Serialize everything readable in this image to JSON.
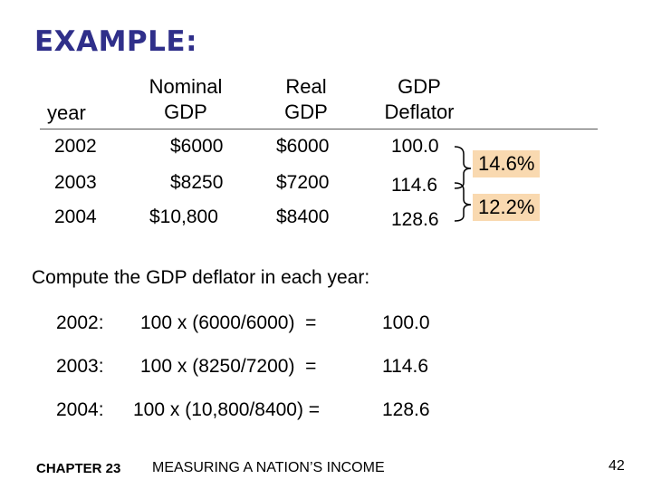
{
  "title": "EXAMPLE:",
  "table": {
    "headers": {
      "year": "year",
      "nominal": "Nominal\nGDP",
      "real": "Real\nGDP",
      "deflator": "GDP\nDeflator"
    },
    "rows": [
      {
        "year": "2002",
        "nominal": "$6000",
        "real": "$6000",
        "deflator": "100.0"
      },
      {
        "year": "2003",
        "nominal": "$8250",
        "real": "$7200",
        "deflator": "114.6"
      },
      {
        "year": "2004",
        "nominal": "$10,800",
        "real": "$8400",
        "deflator": "128.6"
      }
    ]
  },
  "growth": [
    "14.6%",
    "12.2%"
  ],
  "subtitle": "Compute the GDP deflator in each year:",
  "calculations": [
    {
      "year": "2002:",
      "formula": "100 x (6000/6000)  =",
      "result": "100.0"
    },
    {
      "year": "2003:",
      "formula": "100 x (8250/7200)  =",
      "result": "114.6"
    },
    {
      "year": "2004:",
      "formula": "100 x (10,800/8400) =",
      "result": "128.6"
    }
  ],
  "footer": {
    "chapter": "CHAPTER 23",
    "section": "MEASURING A NATION’S INCOME",
    "page": "42"
  },
  "colors": {
    "title": "#2f2f8a",
    "highlight": "#f9d9b0"
  }
}
